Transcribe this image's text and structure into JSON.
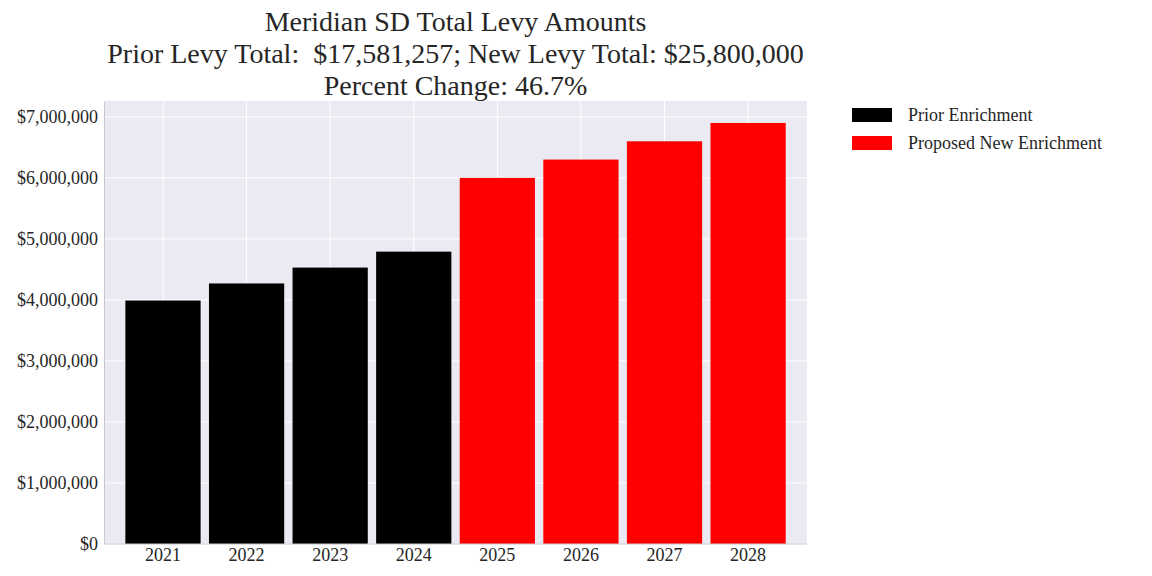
{
  "chart_data": {
    "type": "bar",
    "title": [
      "Meridian SD Total Levy Amounts",
      "Prior Levy Total:  $17,581,257; New Levy Total: $25,800,000",
      "Percent Change: 46.7%"
    ],
    "categories": [
      "2021",
      "2022",
      "2023",
      "2024",
      "2025",
      "2026",
      "2027",
      "2028"
    ],
    "series": [
      {
        "name": "Prior Enrichment",
        "color": "#000000",
        "values": [
          3990000,
          4270000,
          4530000,
          4791257,
          null,
          null,
          null,
          null
        ]
      },
      {
        "name": "Proposed New Enrichment",
        "color": "#ff0000",
        "values": [
          null,
          null,
          null,
          null,
          6000000,
          6300000,
          6600000,
          6900000
        ]
      }
    ],
    "ylim": [
      0,
      7260000
    ],
    "yticks": [
      {
        "value": 0,
        "label": "$0"
      },
      {
        "value": 1000000,
        "label": "$1,000,000"
      },
      {
        "value": 2000000,
        "label": "$2,000,000"
      },
      {
        "value": 3000000,
        "label": "$3,000,000"
      },
      {
        "value": 4000000,
        "label": "$4,000,000"
      },
      {
        "value": 5000000,
        "label": "$5,000,000"
      },
      {
        "value": 6000000,
        "label": "$6,000,000"
      },
      {
        "value": 7000000,
        "label": "$7,000,000"
      }
    ],
    "grid": true,
    "legend": "upper right"
  }
}
